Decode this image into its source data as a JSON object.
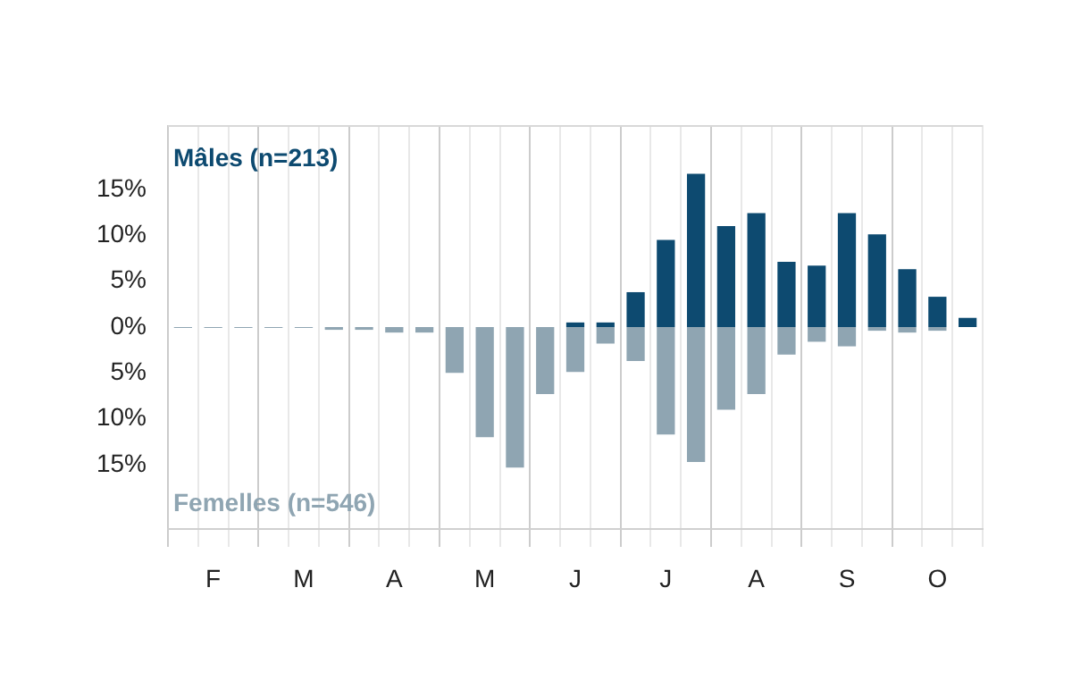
{
  "chart_data": {
    "type": "bar",
    "categories": [
      null,
      "F",
      null,
      null,
      "M",
      null,
      null,
      "A",
      null,
      null,
      "M",
      null,
      null,
      "J",
      null,
      null,
      "J",
      null,
      null,
      "A",
      null,
      null,
      "S",
      null,
      null,
      "O",
      null
    ],
    "series": [
      {
        "name": "Mâles (n=213)",
        "color": "#0d4a70",
        "values": [
          0,
          0,
          0,
          0,
          0,
          0,
          0,
          0,
          0,
          0,
          0,
          0,
          0,
          0.5,
          0.5,
          3.8,
          9.5,
          16.7,
          11.0,
          12.4,
          7.1,
          6.7,
          12.4,
          10.1,
          6.3,
          3.3,
          1.0
        ]
      },
      {
        "name": "Femelles (n=546)",
        "color": "#8fa5b2",
        "values": [
          -0.1,
          -0.1,
          -0.1,
          -0.1,
          -0.1,
          -0.3,
          -0.3,
          -0.6,
          -0.6,
          -5.0,
          -12.0,
          -15.3,
          -7.3,
          -4.9,
          -1.8,
          -3.7,
          -11.7,
          -14.7,
          -9.0,
          -7.3,
          -3.0,
          -1.6,
          -2.1,
          -0.4,
          -0.6,
          -0.4,
          0
        ]
      }
    ],
    "ylim": [
      -22,
      22
    ],
    "yticks": [
      {
        "value": -15,
        "label": "15%"
      },
      {
        "value": -10,
        "label": "10%"
      },
      {
        "value": -5,
        "label": "5%"
      },
      "0%",
      {
        "value": 5,
        "label": "5%"
      },
      {
        "value": 10,
        "label": "10%"
      },
      {
        "value": 15,
        "label": "15%"
      }
    ],
    "grid": "x"
  }
}
